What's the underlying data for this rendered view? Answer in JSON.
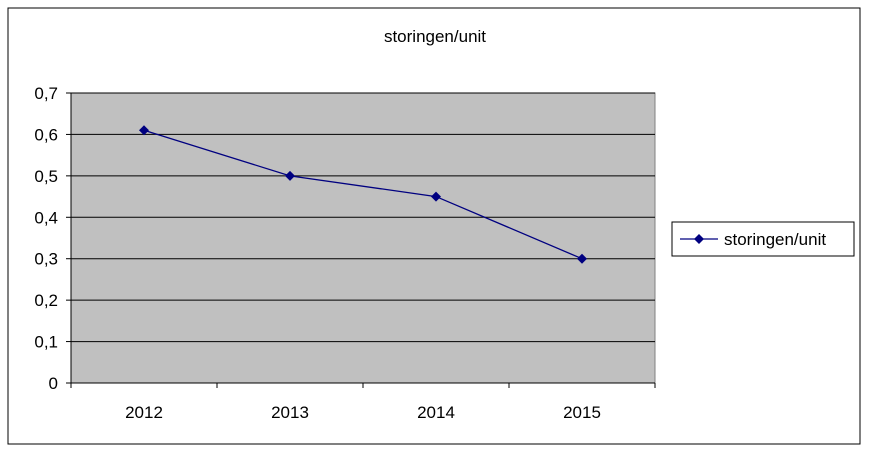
{
  "chart_data": {
    "type": "line",
    "title": "storingen/unit",
    "categories": [
      "2012",
      "2013",
      "2014",
      "2015"
    ],
    "series": [
      {
        "name": "storingen/unit",
        "values": [
          0.61,
          0.5,
          0.45,
          0.3
        ],
        "color": "#000080",
        "marker": "diamond"
      }
    ],
    "ylim": [
      0,
      0.7
    ],
    "yticks": [
      0,
      0.1,
      0.2,
      0.3,
      0.4,
      0.5,
      0.6,
      0.7
    ],
    "ytick_labels": [
      "0",
      "0,1",
      "0,2",
      "0,3",
      "0,4",
      "0,5",
      "0,6",
      "0,7"
    ],
    "grid": true,
    "legend_position": "right",
    "plot_background": "#c0c0c0",
    "xlabel": "",
    "ylabel": ""
  }
}
